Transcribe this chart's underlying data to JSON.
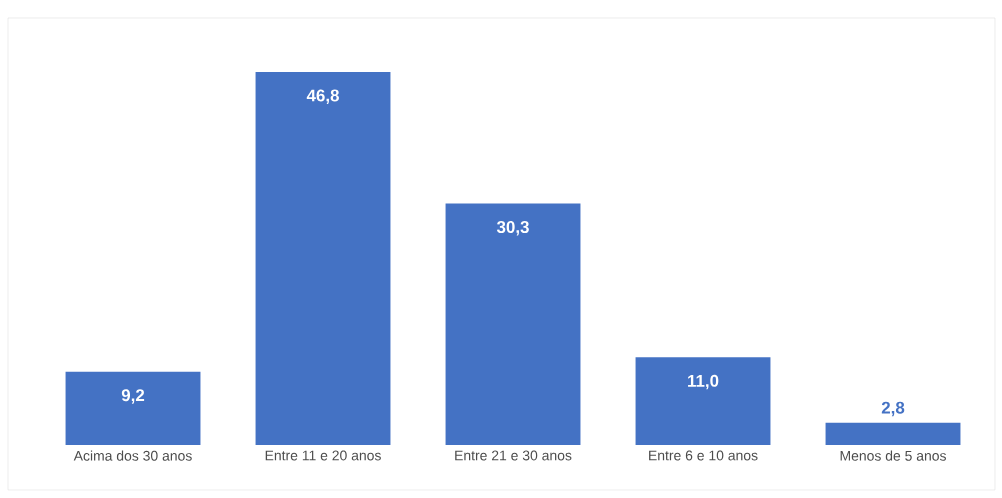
{
  "chart_data": {
    "type": "bar",
    "categories": [
      "Acima dos 30 anos",
      "Entre 11 e 20 anos",
      "Entre 21 e 30 anos",
      "Entre 6 e 10 anos",
      "Menos de 5 anos"
    ],
    "values": [
      9.2,
      46.8,
      30.3,
      11.0,
      2.8
    ],
    "value_labels": [
      "9,2",
      "46,8",
      "30,3",
      "11,0",
      "2,8"
    ],
    "color": "#4472c4"
  }
}
